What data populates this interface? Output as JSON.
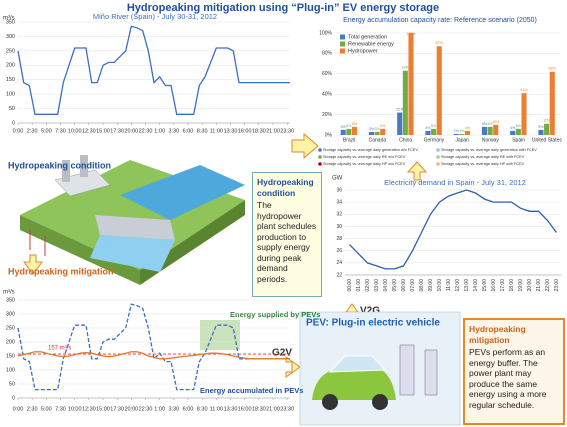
{
  "title": "Hydropeaking mitigation using “Plug-in” EV energy storage",
  "chart_data": [
    {
      "type": "line",
      "title": "Miño River (Spain) - July 30-31, 2012",
      "y_label": "m³/s",
      "x": [
        0,
        1,
        2,
        3,
        4,
        5,
        6,
        7,
        8,
        9,
        10,
        11,
        12,
        13,
        14,
        15,
        16,
        17,
        18,
        19,
        20,
        21,
        22,
        23,
        24,
        25,
        26,
        27,
        28,
        29,
        30,
        31,
        32,
        33,
        34,
        35,
        36,
        37,
        38,
        39,
        40,
        41,
        42,
        43,
        44,
        45,
        46,
        47,
        48
      ],
      "xlim": [
        0,
        48
      ],
      "xticks": [
        {
          "value": 0,
          "label": "0:00"
        },
        {
          "value": 2.5,
          "label": "2:30"
        },
        {
          "value": 5,
          "label": "5:00"
        },
        {
          "value": 7.5,
          "label": "7:30"
        },
        {
          "value": 10,
          "label": "10:00"
        },
        {
          "value": 12.5,
          "label": "12:30"
        },
        {
          "value": 15,
          "label": "15:00"
        },
        {
          "value": 17.5,
          "label": "17:30"
        },
        {
          "value": 20,
          "label": "20:00"
        },
        {
          "value": 22.5,
          "label": "22:30"
        },
        {
          "value": 25,
          "label": "1:00"
        },
        {
          "value": 27.5,
          "label": "3:30"
        },
        {
          "value": 30,
          "label": "6:00"
        },
        {
          "value": 32.5,
          "label": "8:30"
        },
        {
          "value": 35,
          "label": "11:00"
        },
        {
          "value": 37.5,
          "label": "13:30"
        },
        {
          "value": 40,
          "label": "16:00"
        },
        {
          "value": 42.5,
          "label": "18:30"
        },
        {
          "value": 45,
          "label": "21:00"
        },
        {
          "value": 47.5,
          "label": "23:30"
        }
      ],
      "ylim": [
        0,
        350
      ],
      "yticks": [
        0,
        50,
        100,
        150,
        200,
        250,
        300,
        350
      ],
      "grid": true,
      "series": [
        {
          "color": "#3a6fc4",
          "dash": false,
          "values": [
            250,
            140,
            130,
            30,
            30,
            30,
            30,
            30,
            140,
            200,
            260,
            260,
            260,
            140,
            140,
            200,
            210,
            210,
            230,
            250,
            335,
            330,
            320,
            250,
            140,
            160,
            130,
            130,
            30,
            30,
            30,
            30,
            130,
            160,
            210,
            260,
            260,
            260,
            250,
            140,
            140,
            140,
            140,
            140,
            140,
            140,
            140,
            140,
            140
          ]
        }
      ]
    },
    {
      "type": "bar",
      "title": "Energy accumulation capacity rate: Reference scenario (2050)",
      "categories": [
        "Brazil",
        "Canada",
        "China",
        "Germany",
        "Japan",
        "Norway",
        "Spain",
        "United States"
      ],
      "ylim": [
        0,
        100
      ],
      "yticks": [
        {
          "value": 0,
          "label": "0%"
        },
        {
          "value": 20,
          "label": "20%"
        },
        {
          "value": 40,
          "label": "40%"
        },
        {
          "value": 60,
          "label": "60%"
        },
        {
          "value": 80,
          "label": "80%"
        },
        {
          "value": 100,
          "label": "100%"
        }
      ],
      "grid": true,
      "legend": "top-left",
      "series": [
        {
          "name": "Total generation",
          "color": "#4a78c2",
          "values": [
            5,
            3,
            22,
            4,
            1,
            8,
            4,
            5
          ],
          "value_labels": [
            "5%",
            "3%",
            "22%",
            "4%",
            "1%",
            "8%",
            "4%",
            "5%"
          ]
        },
        {
          "name": "Renewable energy",
          "color": "#70ad47",
          "values": [
            6,
            3,
            63,
            6,
            1,
            8,
            6,
            11
          ],
          "value_labels": [
            "6%",
            "3%",
            "63%",
            "6%",
            "1%",
            "8%",
            "6%",
            "11%"
          ]
        },
        {
          "name": "Hydropower",
          "color": "#ed7d31",
          "values": [
            8,
            6,
            171,
            87,
            4,
            10,
            41,
            62
          ],
          "value_labels": [
            "8%",
            "6%",
            "171%",
            "87%",
            "4%",
            "10%",
            "41%",
            "62%"
          ]
        }
      ],
      "notes": [
        {
          "text": "Storage capacity vs. average daily generation w/o FCEV",
          "color": "#4a78c2"
        },
        {
          "text": "Storage capacity vs. average daily generation with FCEV",
          "color": "#9dc3e6"
        },
        {
          "text": "Storage capacity vs. average daily RE w/o FCEV",
          "color": "#70ad47"
        },
        {
          "text": "Storage capacity vs. average daily RE with FCEV",
          "color": "#a9d18e"
        },
        {
          "text": "Storage capacity vs. average daily HP w/o FCEV",
          "color": "#c00000"
        },
        {
          "text": "Storage capacity vs. average daily HP with FCEV",
          "color": "#f4b183"
        }
      ]
    },
    {
      "type": "line",
      "title": "Electricity demand in Spain - July 31, 2012",
      "y_label": "GW",
      "categories": [
        "00:00",
        "01:00",
        "02:00",
        "03:00",
        "04:00",
        "05:00",
        "06:00",
        "07:00",
        "08:00",
        "09:00",
        "10:00",
        "11:00",
        "12:00",
        "13:00",
        "14:00",
        "15:00",
        "16:00",
        "17:00",
        "18:00",
        "19:00",
        "20:00",
        "21:00",
        "22:00",
        "23:00"
      ],
      "ylim": [
        22,
        36
      ],
      "yticks": [
        22,
        24,
        26,
        28,
        30,
        32,
        34,
        36
      ],
      "grid": true,
      "series": [
        {
          "color": "#2e5faa",
          "dash": false,
          "values": [
            27,
            25.5,
            24,
            23.5,
            23,
            23,
            23.5,
            26,
            29,
            32,
            34,
            35,
            35.5,
            36,
            35.5,
            34.5,
            34,
            34,
            34,
            33,
            32.5,
            32.5,
            31,
            29
          ]
        }
      ]
    },
    {
      "type": "line",
      "y_label": "m³/s",
      "x": [
        0,
        1,
        2,
        3,
        4,
        5,
        6,
        7,
        8,
        9,
        10,
        11,
        12,
        13,
        14,
        15,
        16,
        17,
        18,
        19,
        20,
        21,
        22,
        23,
        24,
        25,
        26,
        27,
        28,
        29,
        30,
        31,
        32,
        33,
        34,
        35,
        36,
        37,
        38,
        39,
        40,
        41,
        42,
        43,
        44,
        45,
        46,
        47,
        48
      ],
      "xlim": [
        0,
        48
      ],
      "xticks": [
        {
          "value": 0,
          "label": "0:00"
        },
        {
          "value": 2.5,
          "label": "2:30"
        },
        {
          "value": 5,
          "label": "5:00"
        },
        {
          "value": 7.5,
          "label": "7:30"
        },
        {
          "value": 10,
          "label": "10:00"
        },
        {
          "value": 12.5,
          "label": "12:30"
        },
        {
          "value": 15,
          "label": "15:00"
        },
        {
          "value": 17.5,
          "label": "17:30"
        },
        {
          "value": 20,
          "label": "20:00"
        },
        {
          "value": 22.5,
          "label": "22:30"
        },
        {
          "value": 25,
          "label": "1:00"
        },
        {
          "value": 27.5,
          "label": "3:30"
        },
        {
          "value": 30,
          "label": "6:00"
        },
        {
          "value": 32.5,
          "label": "8:30"
        },
        {
          "value": 35,
          "label": "11:00"
        },
        {
          "value": 37.5,
          "label": "13:30"
        },
        {
          "value": 40,
          "label": "16:00"
        },
        {
          "value": 42.5,
          "label": "18:30"
        },
        {
          "value": 45,
          "label": "21:00"
        },
        {
          "value": 47.5,
          "label": "23:30"
        }
      ],
      "ylim": [
        0,
        350
      ],
      "yticks": [
        0,
        50,
        100,
        150,
        200,
        250,
        300,
        350
      ],
      "grid": true,
      "reference_line": {
        "value": 157,
        "label": "157 m³/s",
        "color": "#e03030"
      },
      "series": [
        {
          "color": "#3a6fc4",
          "dash": true,
          "values": [
            250,
            140,
            130,
            30,
            30,
            30,
            30,
            30,
            140,
            200,
            260,
            260,
            260,
            140,
            140,
            200,
            210,
            210,
            230,
            250,
            335,
            330,
            320,
            250,
            140,
            160,
            130,
            130,
            30,
            30,
            30,
            30,
            130,
            160,
            210,
            260,
            260,
            260,
            250,
            140,
            140,
            140,
            140,
            140,
            140,
            140,
            140,
            140,
            140
          ]
        },
        {
          "color": "#e07b28",
          "dash": false,
          "values": [
            150,
            155,
            160,
            165,
            165,
            160,
            155,
            150,
            148,
            150,
            155,
            160,
            162,
            160,
            155,
            150,
            148,
            150,
            155,
            160,
            165,
            165,
            160,
            150,
            145,
            140,
            140,
            142,
            145,
            148,
            150,
            152,
            155,
            158,
            160,
            160,
            158,
            155,
            150,
            145,
            142,
            140,
            140,
            140,
            140,
            140,
            140,
            140,
            140
          ]
        }
      ],
      "annotations": [
        "Energy supplied by PEVs",
        "Energy accumulated in PEVs",
        "G2V"
      ]
    }
  ],
  "labels": {
    "hydropeaking_condition": "Hydropeaking condition",
    "hydropeaking_mitigation": "Hydropeaking mitigation",
    "v2g": "V2G",
    "pev": "PEV: Plug-in electric vehicle"
  },
  "boxes": [
    {
      "title": "Hydropeaking condition",
      "text": "The hydropower plant schedules production to supply energy during peak demand periods."
    },
    {
      "title": "Hydropeaking mitigation",
      "text": "PEVs perform as an energy buffer. The power plant may produce the same energy using a more regular schedule."
    }
  ]
}
